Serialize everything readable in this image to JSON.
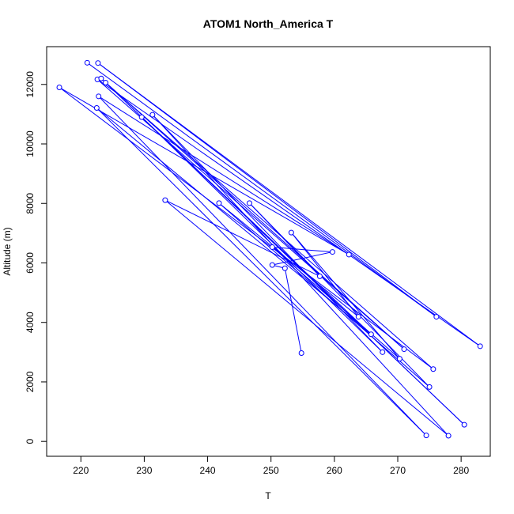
{
  "chart_data": {
    "type": "line",
    "title": "ATOM1 North_America T",
    "xlabel": "T",
    "ylabel": "Altitude (m)",
    "xlim": [
      214.6,
      284.6
    ],
    "ylim": [
      -500,
      13270
    ],
    "xticks": [
      220,
      230,
      240,
      250,
      260,
      270,
      280
    ],
    "yticks": [
      0,
      2000,
      4000,
      6000,
      8000,
      10000,
      12000
    ],
    "color": "#0000ff",
    "markers": "open-circle",
    "grid": false,
    "series": [
      {
        "values": [
          {
            "x": 221.0,
            "y": 12730
          },
          {
            "x": 276.1,
            "y": 4190
          },
          {
            "x": 222.7,
            "y": 12720
          },
          {
            "x": 283.0,
            "y": 3200
          },
          {
            "x": 222.6,
            "y": 12170
          },
          {
            "x": 271.0,
            "y": 3100
          },
          {
            "x": 223.2,
            "y": 12200
          },
          {
            "x": 280.5,
            "y": 560
          },
          {
            "x": 223.9,
            "y": 12060
          },
          {
            "x": 275.6,
            "y": 2430
          },
          {
            "x": 216.6,
            "y": 11900
          },
          {
            "x": 262.3,
            "y": 6280
          },
          {
            "x": 222.8,
            "y": 11600
          },
          {
            "x": 274.5,
            "y": 200
          },
          {
            "x": 222.5,
            "y": 11210
          },
          {
            "x": 265.8,
            "y": 3600
          },
          {
            "x": 229.6,
            "y": 10900
          },
          {
            "x": 267.6,
            "y": 3000
          },
          {
            "x": 231.3,
            "y": 10980
          },
          {
            "x": 278.0,
            "y": 190
          },
          {
            "x": 233.3,
            "y": 8110
          },
          {
            "x": 257.7,
            "y": 5550
          },
          {
            "x": 246.6,
            "y": 8010
          },
          {
            "x": 275.0,
            "y": 1830
          },
          {
            "x": 241.8,
            "y": 8010
          },
          {
            "x": 263.8,
            "y": 4190
          },
          {
            "x": 253.2,
            "y": 7020
          },
          {
            "x": 270.3,
            "y": 2780
          },
          {
            "x": 250.2,
            "y": 6530
          },
          {
            "x": 259.7,
            "y": 6370
          },
          {
            "x": 250.2,
            "y": 5930
          },
          {
            "x": 252.2,
            "y": 5820
          },
          {
            "x": 254.8,
            "y": 2970
          }
        ]
      }
    ]
  }
}
